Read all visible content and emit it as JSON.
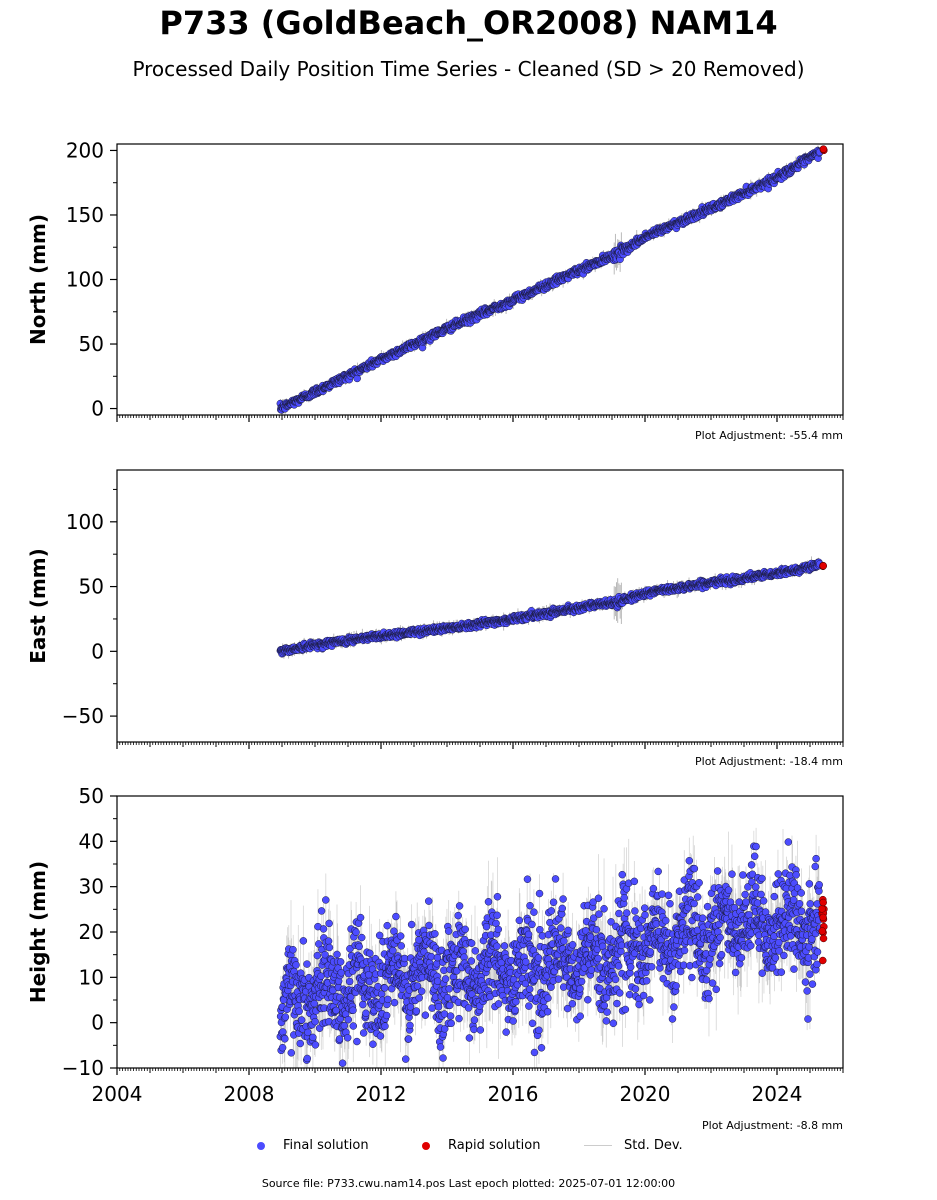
{
  "chart_data": {
    "type": "scatter",
    "title": "P733 (GoldBeach_OR2008) NAM14",
    "subtitle": "Processed Daily Position Time Series - Cleaned (SD > 20 Removed)",
    "x_ticks": [
      "2004",
      "2008",
      "2012",
      "2016",
      "2020",
      "2024"
    ],
    "xlim": [
      2004,
      2026
    ],
    "panels": [
      {
        "ylabel": "North (mm)",
        "ylim": [
          -5,
          205
        ],
        "yticks": [
          0,
          50,
          100,
          150,
          200
        ],
        "plot_adjustment": "Plot Adjustment: -55.4 mm",
        "final_series": {
          "name": "Final solution",
          "x": [
            2008.95,
            2010,
            2012,
            2014,
            2016,
            2018,
            2019.2,
            2020,
            2022,
            2024,
            2025.3
          ],
          "y": [
            0,
            13,
            38,
            62,
            84,
            107,
            120,
            133,
            155,
            179,
            199
          ]
        },
        "rapid_series": {
          "name": "Rapid solution",
          "x": [
            2025.4
          ],
          "y": [
            201
          ]
        }
      },
      {
        "ylabel": "East (mm)",
        "ylim": [
          -70,
          140
        ],
        "yticks": [
          -50,
          0,
          50,
          100
        ],
        "plot_adjustment": "Plot Adjustment: -18.4 mm",
        "final_series": {
          "name": "Final solution",
          "x": [
            2008.95,
            2010,
            2012,
            2014,
            2016,
            2018,
            2019.2,
            2020,
            2022,
            2024,
            2025.3
          ],
          "y": [
            0,
            5,
            12,
            18,
            25,
            34,
            38,
            45,
            53,
            60,
            67
          ]
        },
        "rapid_series": {
          "name": "Rapid solution",
          "x": [
            2025.4
          ],
          "y": [
            66
          ]
        }
      },
      {
        "ylabel": "Height (mm)",
        "ylim": [
          -10,
          50
        ],
        "yticks": [
          -10,
          0,
          10,
          20,
          30,
          40,
          50
        ],
        "plot_adjustment": "Plot Adjustment: -8.8 mm",
        "final_series": {
          "name": "Final solution",
          "x": [
            2008.95,
            2010,
            2012,
            2014,
            2016,
            2018,
            2020,
            2022,
            2024,
            2025.3
          ],
          "y": [
            3,
            7,
            9,
            11,
            12,
            13,
            17,
            21,
            22,
            21
          ]
        },
        "rapid_series": {
          "name": "Rapid solution",
          "x": [
            2025.4
          ],
          "y": [
            22
          ]
        }
      }
    ],
    "legend": [
      "Final solution",
      "Rapid solution",
      "Std. Dev."
    ],
    "colors": {
      "final": "#4c4cff",
      "final_edge": "#1a1a3a",
      "rapid": "#e00000",
      "stddev": "#cccccc"
    }
  },
  "footer": "Source file: P733.cwu.nam14.pos  Last epoch plotted: 2025-07-01 12:00:00"
}
